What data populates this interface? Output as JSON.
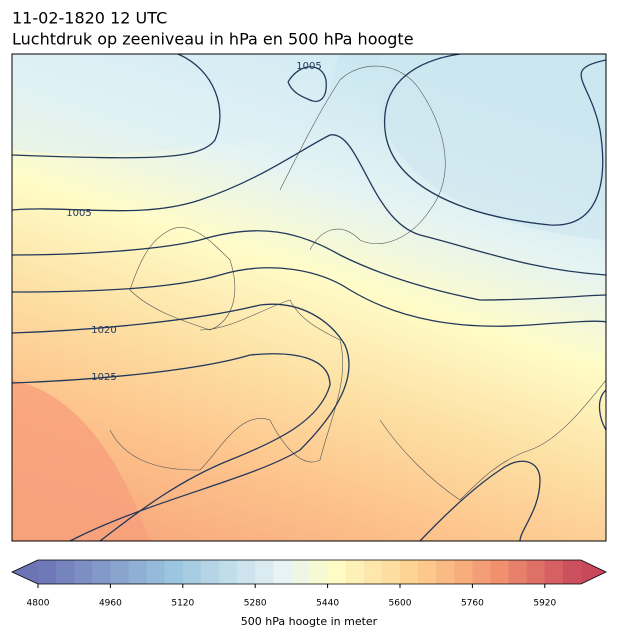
{
  "header": {
    "title": "11-02-1820 12 UTC",
    "subtitle": "Luchtdruk op zeeniveau in hPa en 500 hPa hoogte"
  },
  "map": {
    "contour_labels": [
      "1005",
      "1005",
      "1020",
      "1025"
    ]
  },
  "colorbar": {
    "range": [
      4800,
      6000
    ],
    "ticks": [
      4800,
      4960,
      5120,
      5280,
      5440,
      5600,
      5760,
      5920
    ],
    "label": "500 hPa hoogte in meter"
  }
}
